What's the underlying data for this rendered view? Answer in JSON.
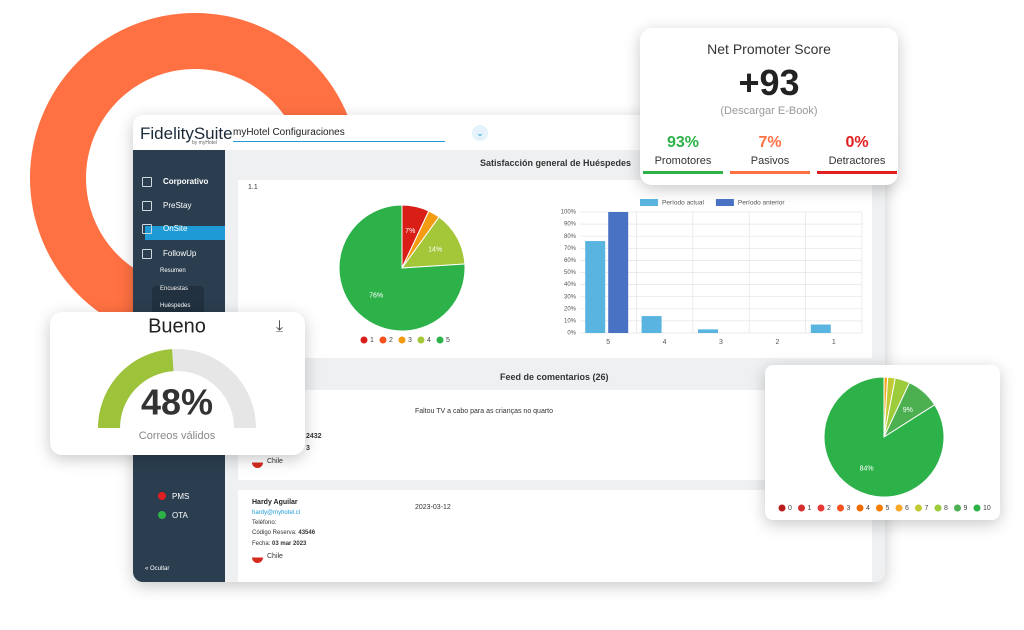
{
  "app": {
    "logo": "FidelitySuite",
    "logo_sub": "by myHotel",
    "hotel_select": "myHotel Configuraciones",
    "sidebar": [
      "Corporativo",
      "PreStay",
      "OnSite",
      "FollowUp",
      "Resumen",
      "Encuestas",
      "Huéspedes"
    ],
    "integrations": [
      "PMS",
      "OTA"
    ],
    "hide": "Ocultar",
    "section_title": "Satisfacción general de Huéspedes",
    "card_label": "1.1",
    "feed_title": "Feed de comentarios (26)",
    "comments": [
      {
        "text": "Faltou TV a cabo para as crianças no quarto",
        "reservation": "2432",
        "date": "3",
        "country": "Chile"
      },
      {
        "name": "Hardy Aguilar",
        "email": "hardy@myhotel.cl",
        "phone": "Teléfono:",
        "reservation_label": "Código Reserva:",
        "reservation": "43546",
        "date_label": "Fecha:",
        "date": "03 mar 2023",
        "country": "Chile",
        "submitted": "2023-03-12"
      }
    ]
  },
  "nps": {
    "title": "Net Promoter Score",
    "score": "+93",
    "link": "(Descargar E-Book)",
    "groups": [
      {
        "value": "93%",
        "label": "Promotores",
        "color": "#2db24a"
      },
      {
        "value": "7%",
        "label": "Pasivos",
        "color": "#ff7043"
      },
      {
        "value": "0%",
        "label": "Detractores",
        "color": "#e02020"
      }
    ]
  },
  "chart_data": [
    {
      "type": "pie",
      "categories": [
        "1",
        "2",
        "3",
        "4",
        "5"
      ],
      "values": [
        7,
        0,
        3,
        14,
        76
      ],
      "value_labels": [
        "7%",
        null,
        null,
        "14%",
        "76%"
      ],
      "colors": [
        "#d91e18",
        "#f4511e",
        "#f39c12",
        "#a4c639",
        "#2db24a"
      ]
    },
    {
      "type": "bar",
      "categories": [
        "5",
        "4",
        "3",
        "2",
        "1"
      ],
      "series": [
        {
          "name": "Período actual",
          "color": "#5ab4e0",
          "values": [
            76,
            14,
            3,
            0,
            7
          ]
        },
        {
          "name": "Período anterior",
          "color": "#4a72c4",
          "values": [
            100,
            0,
            0,
            0,
            0
          ]
        }
      ],
      "ylim": [
        0,
        100
      ],
      "yticks": [
        {
          "value": 0,
          "label": "0%"
        },
        {
          "value": 10,
          "label": "10%"
        },
        {
          "value": 20,
          "label": "20%"
        },
        {
          "value": 30,
          "label": "30%"
        },
        {
          "value": 40,
          "label": "40%"
        },
        {
          "value": 50,
          "label": "50%"
        },
        {
          "value": 60,
          "label": "60%"
        },
        {
          "value": 70,
          "label": "70%"
        },
        {
          "value": 80,
          "label": "80%"
        },
        {
          "value": 90,
          "label": "90%"
        },
        {
          "value": 100,
          "label": "100%"
        }
      ],
      "grid": true,
      "legend": "top"
    },
    {
      "type": "gauge",
      "title": "Bueno",
      "value": 48,
      "value_label": "48%",
      "subtitle": "Correos válidos",
      "lim": [
        0,
        100
      ],
      "color": "#9dc33b",
      "track": "#e6e6e6"
    },
    {
      "type": "pie",
      "categories": [
        "0",
        "1",
        "2",
        "3",
        "4",
        "5",
        "6",
        "7",
        "8",
        "9",
        "10"
      ],
      "values": [
        0,
        0,
        0,
        0,
        0,
        0,
        1,
        2,
        4,
        9,
        84
      ],
      "value_labels": [
        null,
        null,
        null,
        null,
        null,
        null,
        null,
        null,
        null,
        "9%",
        "84%"
      ],
      "colors": [
        "#b71c1c",
        "#d32f2f",
        "#e53935",
        "#f4511e",
        "#ef6c00",
        "#f57c00",
        "#f9a825",
        "#c0ca33",
        "#9ccc3c",
        "#4caf50",
        "#2db24a"
      ]
    }
  ]
}
